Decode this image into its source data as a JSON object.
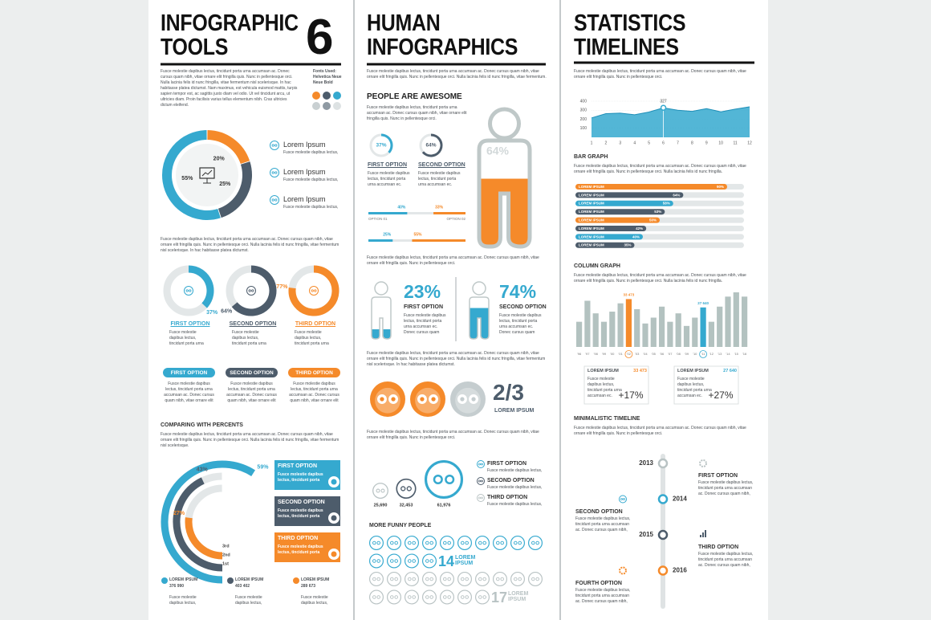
{
  "col1": {
    "title": [
      "INFOGRAPHIC",
      "TOOLS"
    ],
    "number": "6",
    "intro": "Fusce molestie dapibus lectus, tincidunt porta urna accumsan ac. Donec cursus quam nibh, vitae ornare elit fringilla quis. Nunc in pellentesque orci. Nulla lacinia felis id nunc fringilla, vitae fermentum nisl scelerisque. In hac habitasse platea dictumst. Nam maximus, est vehicula euismod mattis, turpis sapien tempor est, ac sagittis justo diam vel odio. Ut vel tincidunt arcu, ut ultricies diam. Proin facilisis varius tellus elementum nibh. Cras ultricies dictum eleifend.",
    "fonts": [
      "Fonts Used:",
      "Helvetica Neue",
      "Neue Bold"
    ],
    "palette": [
      "#f58a2a",
      "#4d5c6b",
      "#35a9cf",
      "#c9d0d2",
      "#8f9aa3",
      "#dde2e3"
    ],
    "donut": {
      "values": [
        20,
        25,
        55
      ],
      "value_labels": [
        "20%",
        "25%",
        "55%"
      ],
      "colors": [
        "#f58a2a",
        "#4d5c6b",
        "#35a9cf"
      ]
    },
    "legend": [
      {
        "name": "Lorem Ipsum",
        "text": "Fusce molestie dapibus lectus,"
      },
      {
        "name": "Lorem Ipsum",
        "text": "Fusce molestie dapibus lectus,"
      },
      {
        "name": "Lorem Ipsum",
        "text": "Fusce molestie dapibus lectus,"
      }
    ],
    "paragraph": "Fusce molestie dapibus lectus, tincidunt porta urna accumsan ac. Donec cursus quam nibh, vitae ornare elit fringilla quis. Nunc in pellentesque orci. Nulla lacinia felis id nunc fringilla, vitae fermentum nisl scelerisque. In hac habitasse platea dictumst.",
    "rings": {
      "values": [
        37,
        64,
        77
      ],
      "value_labels": [
        "37%",
        "64%",
        "77%"
      ],
      "colors": [
        "#35a9cf",
        "#4d5c6b",
        "#f58a2a"
      ],
      "names": [
        "FIRST OPTION",
        "SECOND OPTION",
        "THIRD OPTION"
      ],
      "texts": [
        "Fusce molestie dapibus lectus, tincidunt porta urna",
        "Fusce molestie dapibus lectus, tincidunt porta urna",
        "Fusce molestie dapibus lectus, tincidunt porta urna"
      ]
    },
    "pills": {
      "names": [
        "FIRST OPTION",
        "SECOND OPTION",
        "THIRD OPTION"
      ],
      "texts": [
        "Fusce molestie dapibus lectus, tincidunt porta urna accumsan ac. Donec cursus quam nibh, vitae ornare elit",
        "Fusce molestie dapibus lectus, tincidunt porta urna accumsan ac. Donec cursus quam nibh, vitae ornare elit",
        "Fusce molestie dapibus lectus, tincidunt porta urna accumsan ac. Donec cursus quam nibh, vitae ornare elit"
      ]
    },
    "compare": {
      "heading": "COMPARING WITH PERCENTS",
      "paragraph": "Fusce molestie dapibus lectus, tincidunt porta urna accumsan ac. Donec cursus quam nibh, vitae ornare elit fringilla quis. Nunc in pellentesque orci. Nulla lacinia felis id nunc fringilla, vitae fermentum nisl scelerisque.",
      "values": [
        59,
        43,
        27
      ],
      "value_labels": [
        "59%",
        "43%",
        "27%"
      ],
      "colors": [
        "#35a9cf",
        "#4d5c6b",
        "#f58a2a"
      ],
      "ranks": [
        "3rd",
        "2nd",
        "1st"
      ],
      "boxes": [
        {
          "name": "FIRST OPTION",
          "text": "Fusce molestie dapibus lectus, tincidunt porta"
        },
        {
          "name": "SECOND OPTION",
          "text": "Fusce molestie dapibus lectus, tincidunt porta"
        },
        {
          "name": "THIRD OPTION",
          "text": "Fusce molestie dapibus lectus, tincidunt porta"
        }
      ],
      "legend": [
        {
          "name": "LOREM IPSUM",
          "value": "376 990",
          "text": "Fusce molestie dapibus lectus,"
        },
        {
          "name": "LOREM IPSUM",
          "value": "403 402",
          "text": "Fusce molestie dapibus lectus,"
        },
        {
          "name": "LOREM IPSUM",
          "value": "289 673",
          "text": "Fusce molestie dapibus lectus,"
        }
      ]
    }
  },
  "col2": {
    "title": [
      "HUMAN",
      "INFOGRAPHICS"
    ],
    "intro": "Fusce molestie dapibus lectus, tincidunt porta urna accumsan ac. Donec cursus quam nibh, vitae ornare elit fringilla quis. Nunc in pellentesque orci. Nulla lacinia felis id nunc fringilla, vitae fermentum.",
    "heading": "PEOPLE ARE AWESOME",
    "heading_text": "Fusce molestie dapibus lectus, tincidunt porta urna accumsan ac. Donec cursus quam nibh, vitae ornare elit fringilla quis. Nunc in pellentesque orci.",
    "rings": {
      "values": [
        37,
        64
      ],
      "value_labels": [
        "37%",
        "64%"
      ],
      "colors": [
        "#35a9cf",
        "#4d5c6b"
      ],
      "names": [
        "FIRST OPTION",
        "SECOND OPTION"
      ],
      "texts": [
        "Fusce molestie dapibus lectus, tincidunt porta urna accumsan ec.",
        "Fusce molestie dapibus lectus, tincidunt porta urna accumsan ec."
      ]
    },
    "splits": [
      {
        "values": [
          40,
          33
        ],
        "value_labels": [
          "40%",
          "33%"
        ],
        "names": [
          "OPTION 01",
          "OPTION 02"
        ]
      },
      {
        "values": [
          25,
          55
        ],
        "value_labels": [
          "25%",
          "55%"
        ]
      }
    ],
    "glass": {
      "value": 64,
      "value_label": "64%"
    },
    "paragraph1": "Fusce molestie dapibus lectus, tincidunt porta urna accumsan ac. Donec cursus quam nibh, vitae ornare elit fringilla quis. Nunc in pellentesque orci.",
    "people": [
      {
        "value": 23,
        "value_label": "23%",
        "name": "FIRST OPTION",
        "text": "Fusce molestie dapibus lectus, tincidunt porta urna accumsan ec. Donec cursus quam"
      },
      {
        "value": 74,
        "value_label": "74%",
        "name": "SECOND OPTION",
        "text": "Fusce molestie dapibus lectus, tincidunt porta urna accumsan ec. Donec cursus quam"
      }
    ],
    "paragraph2": "Fusce molestie dapibus lectus, tincidunt porta urna accumsan ac. Donec cursus quam nibh, vitae ornare elit fringilla quis. Nunc in pellentesque orci. Nulla lacinia felis id nunc fringilla, vitae fermentum nisl scelerisque. In hac habitasse platea dictumst.",
    "fraction": {
      "label": "2/3",
      "name": "LOREM IPSUM"
    },
    "paragraph3": "Fusce molestie dapibus lectus, tincidunt porta urna accumsan ac. Donec cursus quam nibh, vitae ornare elit fringilla quis. Nunc in pellentesque orci.",
    "bubbles": {
      "values": [
        25690,
        32453,
        61976
      ],
      "value_labels": [
        "25,690",
        "32,453",
        "61,976"
      ],
      "colors": [
        "#b9c3c4",
        "#4d5c6b",
        "#35a9cf"
      ]
    },
    "legend": [
      {
        "name": "FIRST OPTION",
        "text": "Fusce molestie dapibus lectus,"
      },
      {
        "name": "SECOND OPTION",
        "text": "Fusce molestie dapibus lectus,"
      },
      {
        "name": "THIRD OPTION",
        "text": "Fusce molestie dapibus lectus,"
      }
    ],
    "funny": {
      "heading": "MORE FUNNY PEOPLE",
      "groups": [
        {
          "value": 14,
          "name": "LOREM IPSUM",
          "color": "#35a9cf"
        },
        {
          "value": 17,
          "name": "LOREM IPSUM",
          "color": "#b9c3c4"
        }
      ]
    }
  },
  "col3": {
    "title": [
      "STATISTICS",
      "TIMELINES"
    ],
    "intro": "Fusce molestie dapibus lectus, tincidunt porta urna accumsan ac. Donec cursus quam nibh, vitae ornare elit fringilla quis. Nunc in pellentesque orci.",
    "area": {
      "type": "area",
      "x": [
        1,
        2,
        3,
        4,
        5,
        6,
        7,
        8,
        9,
        10,
        11,
        12
      ],
      "values": [
        215,
        262,
        268,
        250,
        280,
        327,
        300,
        288,
        318,
        282,
        312,
        338
      ],
      "xlim": [
        1,
        12
      ],
      "ylim": [
        0,
        400
      ],
      "xticks": [
        1,
        2,
        3,
        4,
        5,
        6,
        7,
        8,
        9,
        10,
        11,
        12
      ],
      "yticks": [
        100,
        200,
        300,
        400
      ],
      "color": "#35a9cf",
      "grid": true
    },
    "bar_graph": {
      "type": "bar",
      "heading": "BAR GRAPH",
      "paragraph": "Fusce molestie dapibus lectus, tincidunt porta urna accumsan ac. Donec cursus quam nibh, vitae ornare elit fringilla quis. Nunc in pellentesque orci. Nulla lacinia felis id nunc fringilla.",
      "categories": [
        "LOREM IPSUM",
        "LOREM IPSUM",
        "LOREM IPSUM",
        "LOREM IPSUM",
        "LOREM IPSUM",
        "LOREM IPSUM",
        "LOREM IPSUM",
        "LOREM IPSUM"
      ],
      "values": [
        90,
        64,
        58,
        53,
        50,
        42,
        40,
        35
      ],
      "value_labels": [
        "90%",
        "64%",
        "58%",
        "53%",
        "50%",
        "42%",
        "40%",
        "35%"
      ],
      "colors": [
        "#f58a2a",
        "#4d5c6b",
        "#35a9cf",
        "#4d5c6b",
        "#f58a2a",
        "#4d5c6b",
        "#35a9cf",
        "#4d5c6b"
      ],
      "xlim": [
        0,
        100
      ]
    },
    "column_graph": {
      "type": "column",
      "heading": "COLUMN GRAPH",
      "paragraph": "Fusce molestie dapibus lectus, tincidunt porta urna accumsan ac. Donec cursus quam nibh, vitae ornare elit fringilla quis. Nunc in pellentesque orci. Nulla lacinia felis id nunc fringilla.",
      "categories": [
        "'96",
        "'97",
        "'98",
        "'99",
        "'00",
        "'01",
        "'02",
        "'03",
        "'04",
        "'05",
        "'06",
        "'07",
        "'08",
        "'09",
        "'10",
        "'11",
        "'12",
        "'13",
        "'14",
        "'15",
        "'16"
      ],
      "values": [
        17600,
        32300,
        23500,
        17600,
        24700,
        30500,
        33473,
        26400,
        16400,
        20500,
        28200,
        17600,
        23500,
        14700,
        20500,
        27640,
        17600,
        28200,
        35200,
        38200,
        35200
      ],
      "value_labels": [
        null,
        null,
        null,
        null,
        null,
        null,
        "33 473",
        null,
        null,
        null,
        null,
        null,
        null,
        null,
        null,
        "27 640",
        null,
        null,
        null,
        null,
        null
      ],
      "colors": [
        "#b3c2c0",
        "#b3c2c0",
        "#b3c2c0",
        "#b3c2c0",
        "#b3c2c0",
        "#b3c2c0",
        "#f58a2a",
        "#b3c2c0",
        "#b3c2c0",
        "#b3c2c0",
        "#b3c2c0",
        "#b3c2c0",
        "#b3c2c0",
        "#b3c2c0",
        "#b3c2c0",
        "#35a9cf",
        "#b3c2c0",
        "#b3c2c0",
        "#b3c2c0",
        "#b3c2c0",
        "#b3c2c0"
      ]
    },
    "cards": [
      {
        "name": "LOREM IPSUM",
        "value": "33 473",
        "text": "Fusce molestie dapibus lectus, tincidunt porta urna accumsan ec.",
        "change": "+17%",
        "color": "#f58a2a"
      },
      {
        "name": "LOREM IPSUM",
        "value": "27 640",
        "text": "Fusce molestie dapibus lectus, tincidunt porta urna accumsan ec.",
        "change": "+27%",
        "color": "#35a9cf"
      }
    ],
    "timeline": {
      "heading": "MINIMALISTIC TIMELINE",
      "paragraph": "Fusce molestie dapibus lectus, tincidunt porta urna accumsan ac. Donec cursus quam nibh, vitae ornare elit fringilla quis. Nunc in pellentesque orci.",
      "years": [
        "2013",
        "2014",
        "2015",
        "2016"
      ],
      "colors": [
        "#b9c3c4",
        "#35a9cf",
        "#4d5c6b",
        "#f58a2a"
      ],
      "items": [
        {
          "name": "FIRST OPTION",
          "text": "Fusce molestie dapibus lectus, tincidunt porta urna accumsan ac. Donec cursus quam nibh,"
        },
        {
          "name": "SECOND OPTION",
          "text": "Fusce molestie dapibus lectus, tincidunt porta urna accumsan ac. Donec cursus quam nibh,"
        },
        {
          "name": "THIRD OPTION",
          "text": "Fusce molestie dapibus lectus, tincidunt porta urna accumsan ac. Donec cursus quam nibh,"
        },
        {
          "name": "FOURTH OPTION",
          "text": "Fusce molestie dapibus lectus, tincidunt porta urna accumsan ac. Donec cursus quam nibh,"
        }
      ]
    }
  }
}
